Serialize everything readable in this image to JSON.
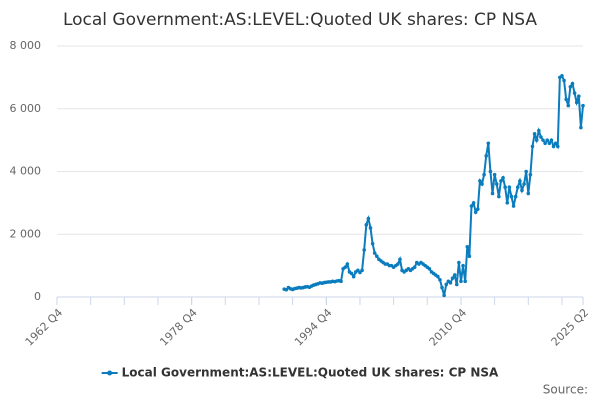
{
  "chart_data": {
    "type": "line",
    "title": "Local Government:AS:LEVEL:Quoted UK shares: CP NSA",
    "source": "Source:",
    "categories": [
      "1962 Q4",
      null,
      null,
      null,
      null,
      null,
      null,
      null,
      null,
      null,
      null,
      null,
      null,
      null,
      null,
      null,
      null,
      null,
      null,
      null,
      null,
      null,
      null,
      null,
      null,
      null,
      null,
      null,
      null,
      null,
      null,
      null,
      null,
      null,
      null,
      null,
      null,
      null,
      null,
      null,
      null,
      null,
      null,
      null,
      null,
      null,
      null,
      null,
      null,
      null,
      null,
      null,
      null,
      null,
      null,
      null,
      null,
      null,
      null,
      null,
      null,
      null,
      null,
      null,
      "1978 Q4",
      null,
      null,
      null,
      null,
      null,
      null,
      null,
      null,
      null,
      null,
      null,
      null,
      null,
      null,
      null,
      null,
      null,
      null,
      null,
      null,
      null,
      null,
      null,
      null,
      null,
      null,
      null,
      null,
      null,
      null,
      null,
      null,
      null,
      null,
      null,
      null,
      null,
      null,
      null,
      null,
      null,
      null,
      null,
      null,
      null,
      null,
      null,
      null,
      null,
      null,
      null,
      null,
      null,
      null,
      null,
      null,
      null,
      null,
      null,
      null,
      null,
      null,
      null,
      "1994 Q4",
      null,
      null,
      null,
      null,
      null,
      null,
      null,
      null,
      null,
      null,
      null,
      null,
      null,
      null,
      null,
      null,
      null,
      null,
      null,
      null,
      null,
      null,
      null,
      null,
      null,
      null,
      null,
      null,
      null,
      null,
      null,
      null,
      null,
      null,
      null,
      null,
      null,
      null,
      null,
      null,
      null,
      null,
      null,
      null,
      null,
      null,
      null,
      null,
      null,
      null,
      null,
      null,
      null,
      null,
      null,
      null,
      null,
      null,
      null,
      null,
      null,
      null,
      null,
      "2010 Q4",
      null,
      null,
      null,
      null,
      null,
      null,
      null,
      null,
      null,
      null,
      null,
      null,
      null,
      null,
      null,
      null,
      null,
      null,
      null,
      null,
      null,
      null,
      null,
      null,
      null,
      null,
      null,
      null,
      null,
      null,
      null,
      null,
      null,
      null,
      null,
      null,
      null,
      null,
      null,
      null,
      null,
      null,
      null,
      null,
      null,
      null,
      null,
      null,
      null,
      null,
      null,
      null,
      null,
      null,
      null,
      null,
      null,
      "2025 Q2"
    ],
    "series": [
      {
        "name": "Local Government:AS:LEVEL:Quoted UK shares: CP NSA",
        "color": "#0b7cbd",
        "values": [
          null,
          null,
          null,
          null,
          null,
          null,
          null,
          null,
          null,
          null,
          null,
          null,
          null,
          null,
          null,
          null,
          null,
          null,
          null,
          null,
          null,
          null,
          null,
          null,
          null,
          null,
          null,
          null,
          null,
          null,
          null,
          null,
          null,
          null,
          null,
          null,
          null,
          null,
          null,
          null,
          null,
          null,
          null,
          null,
          null,
          null,
          null,
          null,
          null,
          null,
          null,
          null,
          null,
          null,
          null,
          null,
          null,
          null,
          null,
          null,
          null,
          null,
          null,
          null,
          null,
          null,
          null,
          null,
          null,
          null,
          null,
          null,
          null,
          null,
          null,
          null,
          null,
          null,
          null,
          null,
          null,
          null,
          null,
          null,
          null,
          null,
          null,
          null,
          null,
          null,
          null,
          null,
          null,
          null,
          null,
          null,
          null,
          null,
          null,
          null,
          null,
          null,
          null,
          null,
          null,
          null,
          null,
          null,
          250,
          230,
          300,
          260,
          240,
          270,
          280,
          300,
          290,
          300,
          320,
          330,
          310,
          350,
          380,
          400,
          420,
          450,
          440,
          460,
          470,
          480,
          480,
          500,
          490,
          510,
          520,
          500,
          900,
          950,
          1050,
          800,
          750,
          650,
          800,
          850,
          780,
          850,
          1500,
          2300,
          2500,
          2200,
          1700,
          1400,
          1300,
          1200,
          1150,
          1100,
          1050,
          1050,
          1000,
          1000,
          950,
          1000,
          1050,
          1200,
          850,
          800,
          850,
          900,
          850,
          900,
          950,
          1100,
          1050,
          1100,
          1050,
          1000,
          950,
          900,
          800,
          750,
          700,
          650,
          550,
          300,
          50,
          400,
          500,
          450,
          600,
          700,
          400,
          1100,
          500,
          1000,
          500,
          1600,
          1300,
          2900,
          3000,
          2700,
          2800,
          3700,
          3600,
          3900,
          4500,
          4900,
          4000,
          3300,
          3900,
          3600,
          3200,
          3700,
          3800,
          3500,
          3000,
          3500,
          3200,
          2900,
          3200,
          3500,
          3700,
          3400,
          3600,
          4000,
          3300,
          3900,
          4800,
          5200,
          5000,
          5300,
          5100,
          5000,
          4900,
          5000,
          4900,
          5000,
          4800,
          4900,
          4800,
          7000,
          7050,
          6900,
          6300,
          6100,
          6700,
          6800,
          6500,
          6200,
          6400,
          5400,
          6100
        ]
      }
    ],
    "ylim": [
      0,
      8000
    ],
    "yticks": [
      0,
      {
        "value": 2000,
        "label": "2 000"
      },
      {
        "value": 4000,
        "label": "4 000"
      },
      {
        "value": 6000,
        "label": "6 000"
      },
      {
        "value": 8000,
        "label": "8 000"
      }
    ],
    "grid": true,
    "legend": "bottom"
  }
}
